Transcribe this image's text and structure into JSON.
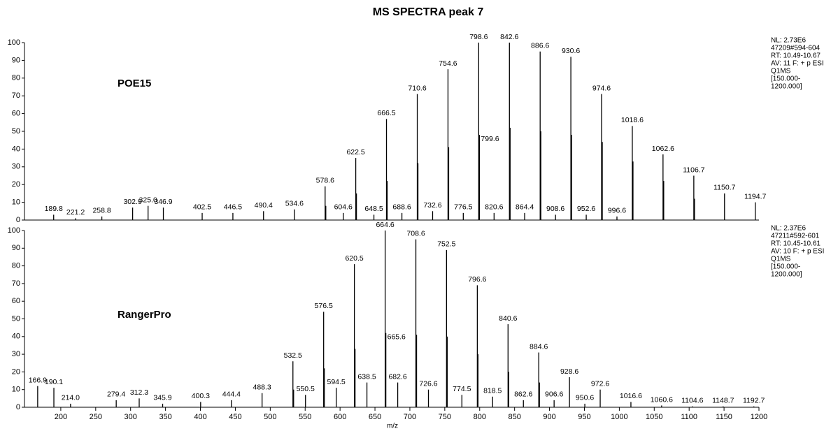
{
  "chart_data": [
    {
      "type": "stem",
      "title": "MS SPECTRA peak 7",
      "annotation": "POE15",
      "info": [
        "NL: 2.73E6",
        "47209#594-604",
        "RT: 10.49-10.67",
        "AV: 11 F: + p ESI",
        "Q1MS",
        "[150.000-",
        "1200.000]"
      ],
      "color": "#000000",
      "xlim": [
        150,
        1200
      ],
      "ylim": [
        0,
        100
      ],
      "yticks": [
        0,
        10,
        20,
        30,
        40,
        50,
        60,
        70,
        80,
        90,
        100
      ],
      "x": [
        189.8,
        221.2,
        258.8,
        302.9,
        325.0,
        346.9,
        402.5,
        446.5,
        490.4,
        534.6,
        578.6,
        579.6,
        604.6,
        622.5,
        623.5,
        648.5,
        666.5,
        667.5,
        688.6,
        710.6,
        711.6,
        732.6,
        754.6,
        755.6,
        776.5,
        798.6,
        799.6,
        820.6,
        842.6,
        843.6,
        864.4,
        886.6,
        887.6,
        908.6,
        930.6,
        931.6,
        952.6,
        974.6,
        975.6,
        996.6,
        1018.6,
        1019.6,
        1062.6,
        1063.6,
        1106.7,
        1107.7,
        1150.7,
        1194.7
      ],
      "x_labels": [
        "189.8",
        "221.2",
        "258.8",
        "302.9",
        "325.0",
        "346.9",
        "402.5",
        "446.5",
        "490.4",
        "534.6",
        "578.6",
        null,
        "604.6",
        "622.5",
        null,
        "648.5",
        "666.5",
        null,
        "688.6",
        "710.6",
        null,
        "732.6",
        "754.6",
        null,
        "776.5",
        "798.6",
        "799.6",
        "820.6",
        "842.6",
        null,
        "864.4",
        "886.6",
        null,
        "908.6",
        "930.6",
        null,
        "952.6",
        "974.6",
        null,
        "996.6",
        "1018.6",
        null,
        "1062.6",
        null,
        "1106.7",
        null,
        "1150.7",
        "1194.7"
      ],
      "values": [
        3,
        1,
        2,
        7,
        8,
        7,
        4,
        4,
        5,
        6,
        19,
        8,
        4,
        35,
        15,
        3,
        57,
        22,
        4,
        71,
        32,
        5,
        85,
        41,
        4,
        100,
        48,
        4,
        100,
        52,
        4,
        95,
        50,
        3,
        92,
        48,
        3,
        71,
        44,
        2,
        53,
        33,
        37,
        22,
        25,
        12,
        15,
        10
      ]
    },
    {
      "type": "stem",
      "annotation": "RangerPro",
      "info": [
        "NL: 2.37E6",
        "47211#592-601",
        "RT: 10.45-10.61",
        "AV: 10 F: + p ESI",
        "Q1MS",
        "[150.000-",
        "1200.000]"
      ],
      "color": "#000000",
      "xlabel": "m/z",
      "xlim": [
        150,
        1200
      ],
      "xticks": [
        200,
        250,
        300,
        350,
        400,
        450,
        500,
        550,
        600,
        650,
        700,
        750,
        800,
        850,
        900,
        950,
        1000,
        1050,
        1100,
        1150,
        1200
      ],
      "ylim": [
        0,
        100
      ],
      "yticks": [
        0,
        10,
        20,
        30,
        40,
        50,
        60,
        70,
        80,
        90,
        100
      ],
      "x": [
        166.9,
        190.1,
        214.0,
        279.4,
        312.3,
        345.9,
        400.3,
        444.4,
        488.3,
        532.5,
        533.5,
        550.5,
        576.5,
        577.5,
        594.5,
        620.5,
        621.5,
        638.5,
        664.6,
        665.6,
        682.6,
        708.6,
        709.6,
        726.6,
        752.5,
        753.5,
        774.5,
        796.6,
        797.6,
        818.5,
        840.6,
        841.6,
        862.6,
        884.6,
        885.6,
        906.6,
        928.6,
        950.6,
        972.6,
        1016.6,
        1060.6,
        1104.6,
        1148.7,
        1192.7
      ],
      "x_labels": [
        "166.9",
        "190.1",
        "214.0",
        "279.4",
        "312.3",
        "345.9",
        "400.3",
        "444.4",
        "488.3",
        "532.5",
        null,
        "550.5",
        "576.5",
        null,
        "594.5",
        "620.5",
        null,
        "638.5",
        "664.6",
        "665.6",
        "682.6",
        "708.6",
        null,
        "726.6",
        "752.5",
        null,
        "774.5",
        "796.6",
        null,
        "818.5",
        "840.6",
        null,
        "862.6",
        "884.6",
        null,
        "906.6",
        "928.6",
        "950.6",
        "972.6",
        "1016.6",
        "1060.6",
        "1104.6",
        "1148.7",
        "1192.7"
      ],
      "values": [
        12,
        11,
        2,
        4,
        5,
        2,
        3,
        4,
        8,
        26,
        10,
        7,
        54,
        22,
        11,
        81,
        33,
        14,
        100,
        42,
        14,
        95,
        41,
        10,
        89,
        40,
        7,
        69,
        30,
        6,
        47,
        20,
        4,
        31,
        14,
        4,
        17,
        2,
        10,
        3,
        1,
        0.5,
        0.5,
        0.5
      ]
    }
  ]
}
